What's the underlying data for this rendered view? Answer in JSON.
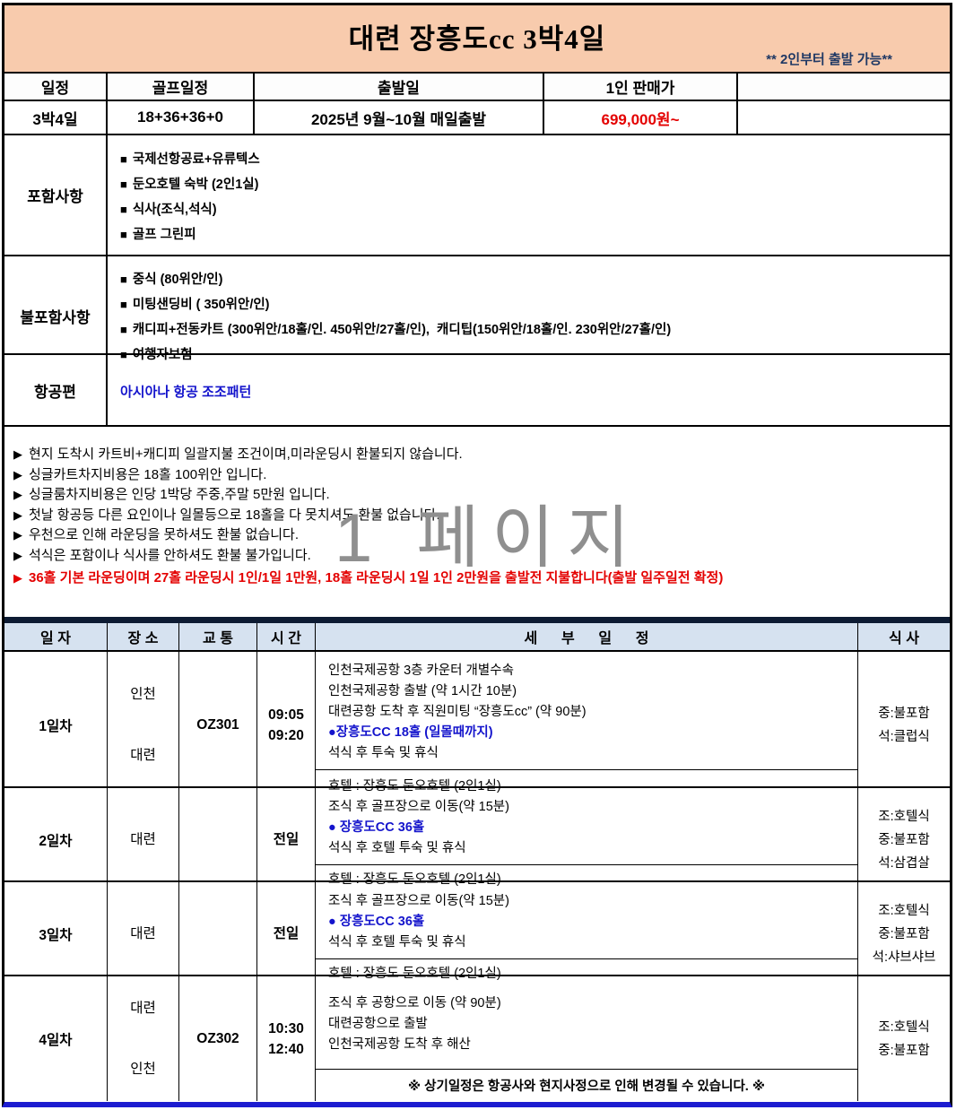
{
  "glyphs": {
    "square_bullet": "■",
    "arrow_bullet": "▶"
  },
  "colors": {
    "header_bg": "#F8CBAD",
    "navy_text": "#1F3864",
    "red_text": "#e40000",
    "blue_text": "#1414cc",
    "itinerary_header_bg": "#D6E2F0",
    "watermark_gray": "#8f8f8f"
  },
  "header": {
    "title": "대련 장흥도cc 3박4일",
    "note": "** 2인부터 출발 가능**"
  },
  "summary_table": {
    "columns": [
      "일정",
      "골프일정",
      "출발일",
      "1인 판매가",
      ""
    ],
    "row": {
      "schedule": "3박4일",
      "golf": "18+36+36+0",
      "departure": "2025년 9월~10월 매일출발",
      "price": "699,000원~",
      "extra": ""
    }
  },
  "sections": {
    "included": {
      "label": "포함사항",
      "items": [
        "국제선항공료+유류텍스",
        "둔오호텔 숙박 (2인1실)",
        "식사(조식,석식)",
        "골프 그린피"
      ]
    },
    "excluded": {
      "label": "불포함사항",
      "items": [
        "중식 (80위안/인)",
        "미팅샌딩비 ( 350위안/인)",
        "캐디피+전동카트 (300위안/18홀/인. 450위안/27홀/인),  캐디팁(150위안/18홀/인. 230위안/27홀/인)",
        "여행자보험"
      ]
    },
    "flight": {
      "label": "항공편",
      "items": [
        "아시아나 항공 조조패턴"
      ]
    }
  },
  "notices": {
    "items": [
      "현지 도착시 카트비+캐디피 일괄지불 조건이며,미라운딩시 환불되지 않습니다.",
      "싱글카트차지비용은 18홀 100위안 입니다.",
      "싱글룸차지비용은 인당 1박당 주중,주말 5만원 입니다.",
      "첫날 항공등 다른 요인이나 일몰등으로 18홀을 다 못치셔도 환불 없습니다.",
      "우천으로 인해 라운딩을 못하셔도 환불 없습니다.",
      "석식은 포함이나 식사를 안하셔도 환불 불가입니다."
    ],
    "red_item": "36홀 기본 라운딩이며 27홀 라운딩시 1인/1일 1만원, 18홀 라운딩시 1일 1인 2만원을 출발전 지불합니다(출발 일주일전 확정)",
    "watermark": "1 페이지"
  },
  "itinerary": {
    "columns": [
      "일 자",
      "장 소",
      "교 통",
      "시 간",
      "세      부      일      정",
      "식 사"
    ],
    "days": [
      {
        "day": "1일차",
        "place1": "인천",
        "place2": "대련",
        "flight": "OZ301",
        "time1": "09:05",
        "time2": "09:20",
        "details": [
          "인천국제공항 3층 카운터 개별수속",
          "인천국제공항 출발 (약 1시간 10분)",
          "대련공항 도착 후 직원미팅 “장흥도cc” (약 90분)",
          "●장흥도CC 18홀 (일몰때까지)",
          "석식 후 투숙 및 휴식"
        ],
        "footer": "호텔 : 장흥도 둔오호텔 (2인1실)",
        "meal1": "중:불포함",
        "meal2": "석:클럽식",
        "meal3": ""
      },
      {
        "day": "2일차",
        "place1": "대련",
        "place2": "",
        "flight": "",
        "time1": "전일",
        "time2": "",
        "details": [
          "조식 후 골프장으로 이동(약 15분)",
          "● 장흥도CC 36홀",
          "석식 후 호텔 투숙 및 휴식"
        ],
        "footer": "호텔 : 장흥도 둔오호텔 (2인1실)",
        "meal1": "조:호텔식",
        "meal2": "중:불포함",
        "meal3": "석:삼겹살"
      },
      {
        "day": "3일차",
        "place1": "대련",
        "place2": "",
        "flight": "",
        "time1": "전일",
        "time2": "",
        "details": [
          "조식 후 골프장으로 이동(약 15분)",
          "● 장흥도CC 36홀",
          "석식 후 호텔 투숙 및 휴식"
        ],
        "footer": "호텔 : 장흥도 둔오호텔 (2인1실)",
        "meal1": "조:호텔식",
        "meal2": "중:불포함",
        "meal3": "석:샤브샤브"
      },
      {
        "day": "4일차",
        "place1": "대련",
        "place2": "인천",
        "flight": "OZ302",
        "time1": "10:30",
        "time2": "12:40",
        "details": [
          "조식 후 공항으로 이동 (약 90분)",
          "대련공항으로 출발",
          "인천국제공항 도착 후 해산"
        ],
        "footer": "※ 상기일정은 항공사와 현지사정으로 인해 변경될 수 있습니다. ※",
        "meal1": "조:호텔식",
        "meal2": "중:불포함",
        "meal3": ""
      }
    ]
  }
}
